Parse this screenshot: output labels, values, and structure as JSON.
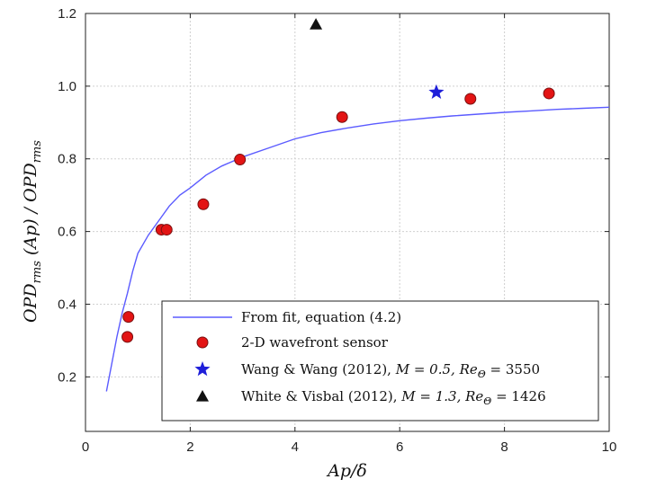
{
  "chart_data": {
    "type": "scatter",
    "xlabel": "Ap/δ",
    "ylabel": "OPD_rms (Ap) / OPD_rms",
    "ylabel_parts": {
      "a": "OPD",
      "a_sub": "rms",
      "b": " (Ap) / OPD",
      "b_sub": "rms"
    },
    "xlim": [
      0,
      10
    ],
    "ylim": [
      0.05,
      1.2
    ],
    "x_ticks": [
      "0",
      "2",
      "4",
      "6",
      "8",
      "10"
    ],
    "y_ticks": [
      "0.2",
      "0.4",
      "0.6",
      "0.8",
      "1.0",
      "1.2"
    ],
    "x_tick_values": [
      0,
      2,
      4,
      6,
      8,
      10
    ],
    "y_tick_values": [
      0.2,
      0.4,
      0.6,
      0.8,
      1.0,
      1.2
    ],
    "grid": true,
    "legend_position": "bottom-right",
    "colors": {
      "fit": "#5b5bff",
      "sensor_fill": "#e31414",
      "sensor_edge": "#7a1010",
      "wang": "#1f1fd9",
      "white": "#111111",
      "grid": "#d0d0d0"
    },
    "series": [
      {
        "name": "From fit, equation (4.2)",
        "kind": "line",
        "x": [
          0.4,
          0.5,
          0.6,
          0.7,
          0.8,
          0.9,
          1.0,
          1.2,
          1.4,
          1.6,
          1.8,
          2.0,
          2.3,
          2.6,
          3.0,
          3.5,
          4.0,
          4.5,
          5.0,
          5.5,
          6.0,
          6.5,
          7.0,
          7.5,
          8.0,
          8.5,
          9.0,
          9.5,
          10.0
        ],
        "y": [
          0.16,
          0.235,
          0.31,
          0.375,
          0.43,
          0.49,
          0.54,
          0.59,
          0.63,
          0.67,
          0.7,
          0.72,
          0.755,
          0.78,
          0.805,
          0.83,
          0.855,
          0.872,
          0.885,
          0.896,
          0.905,
          0.912,
          0.918,
          0.923,
          0.928,
          0.932,
          0.936,
          0.939,
          0.942
        ]
      },
      {
        "name": "2-D wavefront sensor",
        "kind": "circle",
        "x": [
          0.8,
          0.82,
          1.45,
          1.55,
          2.25,
          2.95,
          4.9,
          7.35,
          8.85
        ],
        "y": [
          0.31,
          0.365,
          0.605,
          0.605,
          0.675,
          0.798,
          0.915,
          0.965,
          0.98
        ]
      },
      {
        "name": "Wang & Wang (2012), M = 0.5, Re_Θ = 3550",
        "kind": "star",
        "x": [
          6.7
        ],
        "y": [
          0.983
        ]
      },
      {
        "name": "White & Visbal (2012), M = 1.3, Re_Θ = 1426",
        "kind": "triangle",
        "x": [
          4.4
        ],
        "y": [
          1.17
        ]
      }
    ],
    "legend": [
      {
        "text": "From fit, equation (4.2)"
      },
      {
        "text": "2-D wavefront sensor"
      },
      {
        "text": "Wang & Wang (2012), ",
        "math": "M = 0.5, Re",
        "sub": "Θ",
        "tail": " = 3550"
      },
      {
        "text": "White & Visbal (2012), ",
        "math": "M = 1.3, Re",
        "sub": "Θ",
        "tail": " = 1426"
      }
    ]
  }
}
